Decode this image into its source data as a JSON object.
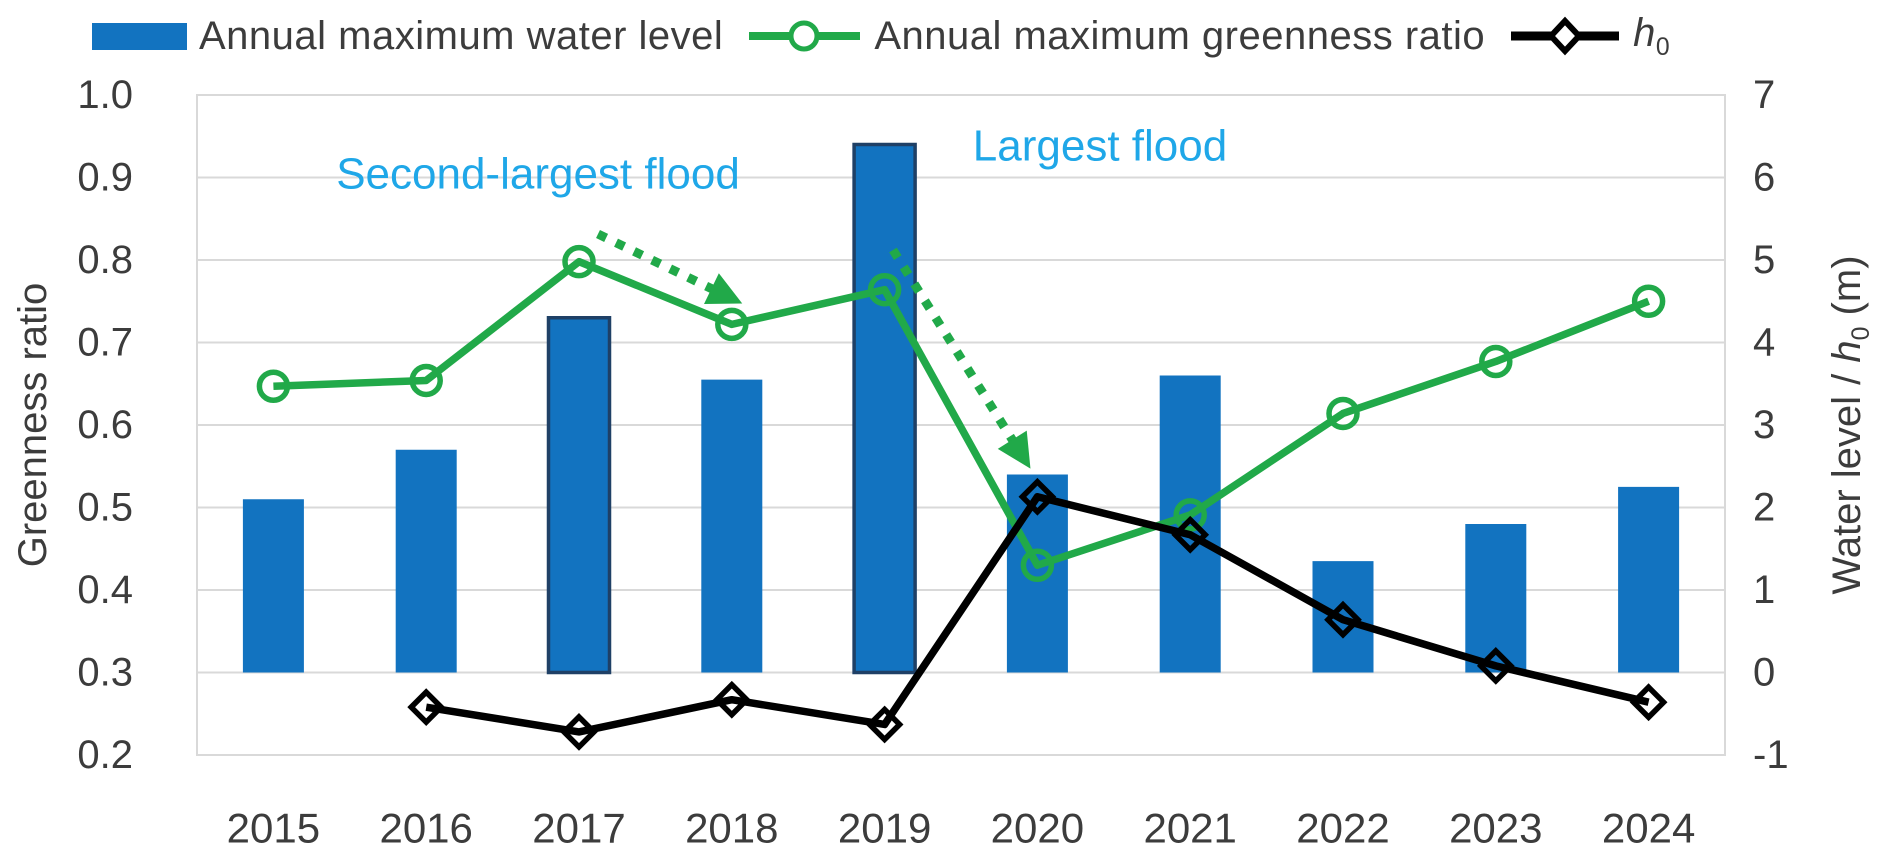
{
  "figure": {
    "legend": {
      "items": [
        {
          "label": "Annual maximum water level"
        },
        {
          "label": "Annual maximum greenness ratio"
        },
        {
          "label_main": "h",
          "label_sub": "0"
        }
      ]
    },
    "left_axis": {
      "title": "Greenness ratio",
      "ticks": [
        "1.0",
        "0.9",
        "0.8",
        "0.7",
        "0.6",
        "0.5",
        "0.4",
        "0.3",
        "0.2"
      ]
    },
    "right_axis": {
      "title_pre": "Water level / ",
      "title_var": "h",
      "title_sub": "0",
      "title_post": " (m)",
      "ticks": [
        "7",
        "6",
        "5",
        "4",
        "3",
        "2",
        "1",
        "0",
        "-1"
      ]
    },
    "colors": {
      "bar_blue": "#1273C0",
      "flood_bar_border": "#1F4066",
      "greenness_green": "#21A949",
      "h0_black": "#000000",
      "annotation_blue": "#1FA7E8",
      "gridline_gray": "#D9D9D9",
      "axis_text_gray": "#3C3C3C"
    }
  },
  "chart_data": {
    "type": "combo-bar-line",
    "title": "",
    "categories": [
      "2015",
      "2016",
      "2017",
      "2018",
      "2019",
      "2020",
      "2021",
      "2022",
      "2023",
      "2024"
    ],
    "left_axis": {
      "label": "Greenness ratio",
      "range": [
        0.2,
        1.0
      ],
      "tick_step": 0.1,
      "grid": true
    },
    "right_axis": {
      "label": "Water level / h0 (m)",
      "range": [
        -1,
        7
      ],
      "tick_step": 1
    },
    "legend_position": "top",
    "series": [
      {
        "name": "Annual maximum water level",
        "type": "bar",
        "axis": "right",
        "color": "#1273C0",
        "values": [
          2.1,
          2.7,
          4.3,
          3.55,
          6.4,
          2.4,
          3.6,
          1.35,
          1.8,
          2.25
        ],
        "highlighted_categories": [
          "2017",
          "2019"
        ],
        "highlight_border_color": "#1F4066"
      },
      {
        "name": "Annual maximum greenness ratio",
        "type": "line",
        "axis": "left",
        "marker": "open-circle",
        "color": "#21A949",
        "values": [
          0.647,
          0.654,
          0.798,
          0.722,
          0.764,
          0.43,
          0.491,
          0.614,
          0.677,
          0.75
        ]
      },
      {
        "name": "h0",
        "type": "line",
        "axis": "right",
        "marker": "open-diamond",
        "color": "#000000",
        "values": [
          null,
          -0.42,
          -0.72,
          -0.33,
          -0.63,
          2.13,
          1.67,
          0.64,
          0.08,
          -0.36
        ]
      }
    ],
    "annotations": [
      {
        "text": "Second-largest flood",
        "color": "#1FA7E8",
        "arrow": {
          "style": "dotted-green",
          "from_category": "2017",
          "to_category": "2018"
        }
      },
      {
        "text": "Largest flood",
        "color": "#1FA7E8",
        "arrow": {
          "style": "dotted-green",
          "from_category": "2019",
          "to_category": "2020"
        }
      }
    ]
  }
}
